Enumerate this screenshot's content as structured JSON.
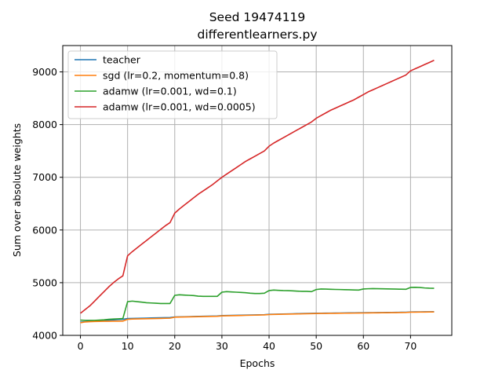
{
  "chart_data": {
    "type": "line",
    "title_line1": "Seed 19474119",
    "title_line2": "differentlearners.py",
    "xlabel": "Epochs",
    "ylabel": "Sum over absolute weights",
    "xlim": [
      -3.75,
      78.75
    ],
    "ylim": [
      4000,
      9500
    ],
    "xticks": [
      0,
      10,
      20,
      30,
      40,
      50,
      60,
      70
    ],
    "yticks": [
      4000,
      5000,
      6000,
      7000,
      8000,
      9000
    ],
    "grid": true,
    "legend_position": "upper-left",
    "x": [
      0,
      1,
      2,
      3,
      4,
      5,
      6,
      7,
      8,
      9,
      10,
      11,
      12,
      13,
      14,
      15,
      16,
      17,
      18,
      19,
      20,
      21,
      22,
      23,
      24,
      25,
      26,
      27,
      28,
      29,
      30,
      31,
      32,
      33,
      34,
      35,
      36,
      37,
      38,
      39,
      40,
      41,
      42,
      43,
      44,
      45,
      46,
      47,
      48,
      49,
      50,
      51,
      52,
      53,
      54,
      55,
      56,
      57,
      58,
      59,
      60,
      61,
      62,
      63,
      64,
      65,
      66,
      67,
      68,
      69,
      70,
      71,
      72,
      73,
      74,
      75
    ],
    "series": [
      {
        "name": "teacher",
        "color": "#1f77b4",
        "values": [
          4250,
          4260,
          4270,
          4275,
          4280,
          4285,
          4290,
          4295,
          4300,
          4305,
          4320,
          4322,
          4324,
          4326,
          4328,
          4330,
          4332,
          4334,
          4336,
          4338,
          4350,
          4352,
          4354,
          4356,
          4358,
          4360,
          4362,
          4364,
          4366,
          4368,
          4375,
          4377,
          4379,
          4381,
          4383,
          4385,
          4387,
          4389,
          4391,
          4393,
          4400,
          4402,
          4404,
          4406,
          4408,
          4410,
          4412,
          4414,
          4416,
          4418,
          4420,
          4421,
          4422,
          4423,
          4424,
          4425,
          4426,
          4427,
          4428,
          4429,
          4430,
          4431,
          4432,
          4433,
          4434,
          4435,
          4436,
          4437,
          4438,
          4439,
          4445,
          4446,
          4447,
          4448,
          4449,
          4450
        ]
      },
      {
        "name": "sgd (lr=0.2, momentum=0.8)",
        "color": "#ff7f0e",
        "values": [
          4240,
          4255,
          4260,
          4263,
          4265,
          4267,
          4268,
          4269,
          4270,
          4271,
          4305,
          4310,
          4312,
          4314,
          4316,
          4318,
          4320,
          4322,
          4324,
          4326,
          4345,
          4347,
          4349,
          4351,
          4353,
          4355,
          4357,
          4359,
          4361,
          4363,
          4370,
          4372,
          4374,
          4376,
          4378,
          4380,
          4382,
          4384,
          4386,
          4388,
          4395,
          4397,
          4399,
          4401,
          4403,
          4405,
          4407,
          4409,
          4411,
          4413,
          4415,
          4416,
          4417,
          4418,
          4419,
          4420,
          4421,
          4422,
          4423,
          4424,
          4425,
          4426,
          4427,
          4428,
          4429,
          4430,
          4431,
          4432,
          4433,
          4434,
          4440,
          4441,
          4442,
          4443,
          4444,
          4445
        ]
      },
      {
        "name": "adamw (lr=0.001, wd=0.1)",
        "color": "#2ca02c",
        "values": [
          4290,
          4285,
          4285,
          4285,
          4290,
          4295,
          4305,
          4310,
          4315,
          4320,
          4640,
          4650,
          4640,
          4630,
          4620,
          4615,
          4610,
          4605,
          4605,
          4605,
          4760,
          4770,
          4765,
          4760,
          4755,
          4745,
          4740,
          4740,
          4740,
          4740,
          4820,
          4830,
          4825,
          4820,
          4815,
          4810,
          4800,
          4795,
          4795,
          4800,
          4850,
          4860,
          4855,
          4850,
          4848,
          4845,
          4840,
          4835,
          4835,
          4830,
          4870,
          4880,
          4878,
          4875,
          4872,
          4870,
          4868,
          4865,
          4862,
          4860,
          4880,
          4885,
          4888,
          4886,
          4884,
          4882,
          4880,
          4878,
          4876,
          4874,
          4910,
          4912,
          4908,
          4900,
          4895,
          4893
        ]
      },
      {
        "name": "adamw (lr=0.001, wd=0.0005)",
        "color": "#d62728",
        "values": [
          4420,
          4490,
          4560,
          4650,
          4740,
          4830,
          4920,
          5000,
          5070,
          5130,
          5510,
          5590,
          5660,
          5730,
          5800,
          5870,
          5940,
          6010,
          6080,
          6140,
          6320,
          6400,
          6470,
          6540,
          6610,
          6680,
          6740,
          6800,
          6860,
          6930,
          7000,
          7060,
          7120,
          7180,
          7240,
          7300,
          7350,
          7400,
          7450,
          7500,
          7590,
          7650,
          7700,
          7750,
          7800,
          7850,
          7900,
          7950,
          8000,
          8050,
          8120,
          8170,
          8220,
          8270,
          8310,
          8350,
          8390,
          8430,
          8470,
          8520,
          8570,
          8620,
          8660,
          8700,
          8740,
          8780,
          8820,
          8860,
          8900,
          8940,
          9020,
          9060,
          9100,
          9140,
          9180,
          9220
        ]
      }
    ]
  }
}
